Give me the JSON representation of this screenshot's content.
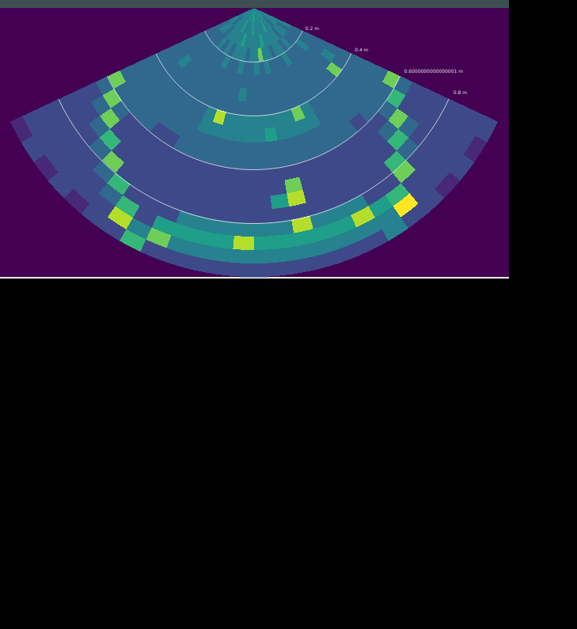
{
  "chart_data": {
    "type": "sonar",
    "color": "viridis",
    "zlim": [
      0,
      9
    ],
    "range_edges": [
      0,
      0.05,
      0.1,
      0.15,
      0.2,
      0.25,
      0.3,
      0.35,
      0.4,
      0.45,
      0.5,
      0.55,
      0.6,
      0.65,
      0.7,
      0.75,
      0.8,
      0.85,
      0.9,
      0.95,
      1.0
    ],
    "angle_edges": [
      -65,
      -60,
      -55,
      -50,
      -45,
      -40,
      -35,
      -30,
      -25,
      -20,
      -15,
      -10,
      -5,
      0,
      5,
      10,
      15,
      20,
      25,
      30,
      35,
      40,
      45,
      50,
      55,
      60,
      65
    ],
    "rings": [
      {
        "value": 0.2,
        "label": "0.2 m"
      },
      {
        "value": 0.4,
        "label": "0.4 m"
      },
      {
        "value": 0.6000000000000001,
        "label": "0.6000000000000001 m"
      },
      {
        "value": 0.8,
        "label": "0.8 m"
      }
    ],
    "intensity": [
      [
        4,
        4,
        4,
        4,
        5,
        4,
        4,
        4,
        5,
        4,
        4,
        5,
        5,
        5,
        4,
        4,
        5,
        4,
        4,
        4,
        5,
        4,
        4,
        4,
        4,
        4
      ],
      [
        4,
        4,
        3,
        4,
        4,
        4,
        4,
        5,
        4,
        4,
        4,
        4,
        5,
        4,
        4,
        4,
        4,
        4,
        5,
        4,
        4,
        4,
        3,
        4,
        4,
        4
      ],
      [
        3,
        4,
        4,
        3,
        4,
        4,
        4,
        4,
        4,
        5,
        4,
        4,
        4,
        4,
        4,
        5,
        4,
        4,
        4,
        4,
        4,
        3,
        4,
        4,
        3,
        4
      ],
      [
        3,
        3,
        3,
        3,
        4,
        3,
        4,
        3,
        4,
        4,
        4,
        3,
        4,
        4,
        7,
        4,
        4,
        3,
        4,
        4,
        3,
        4,
        3,
        3,
        3,
        3
      ],
      [
        3,
        3,
        3,
        3,
        3,
        3,
        3,
        4,
        3,
        3,
        4,
        3,
        3,
        4,
        3,
        4,
        3,
        3,
        3,
        4,
        3,
        3,
        3,
        4,
        3,
        3
      ],
      [
        3,
        3,
        3,
        3,
        3,
        3,
        3,
        3,
        3,
        3,
        3,
        3,
        3,
        3,
        3,
        3,
        3,
        3,
        3,
        3,
        3,
        3,
        3,
        3,
        3,
        3
      ],
      [
        3,
        3,
        4,
        3,
        3,
        3,
        3,
        3,
        3,
        3,
        3,
        4,
        3,
        3,
        3,
        3,
        3,
        3,
        3,
        3,
        3,
        3,
        3,
        3,
        4,
        3
      ],
      [
        3,
        3,
        3,
        3,
        3,
        3,
        3,
        3,
        3,
        3,
        3,
        3,
        3,
        3,
        3,
        3,
        3,
        3,
        3,
        3,
        3,
        3,
        3,
        7,
        3,
        3
      ],
      [
        3,
        3,
        3,
        3,
        3,
        3,
        3,
        3,
        4,
        8,
        4,
        4,
        4,
        4,
        4,
        4,
        4,
        7,
        4,
        3,
        3,
        3,
        3,
        3,
        3,
        3
      ],
      [
        3,
        3,
        3,
        3,
        3,
        3,
        3,
        3,
        4,
        4,
        4,
        4,
        4,
        4,
        5,
        4,
        4,
        4,
        4,
        3,
        3,
        3,
        3,
        3,
        3,
        3
      ],
      [
        3,
        3,
        3,
        3,
        3,
        3,
        3,
        3,
        3,
        3,
        3,
        3,
        3,
        3,
        3,
        3,
        3,
        3,
        3,
        3,
        3,
        3,
        3,
        3,
        3,
        3
      ],
      [
        7,
        3,
        3,
        3,
        3,
        2,
        2,
        3,
        3,
        3,
        3,
        3,
        3,
        3,
        3,
        3,
        3,
        3,
        3,
        3,
        3,
        2,
        3,
        3,
        3,
        7
      ],
      [
        3,
        7,
        3,
        2,
        2,
        2,
        2,
        2,
        2,
        2,
        2,
        2,
        2,
        2,
        2,
        2,
        2,
        2,
        2,
        2,
        2,
        2,
        2,
        3,
        6,
        3
      ],
      [
        2,
        3,
        7,
        2,
        2,
        2,
        2,
        2,
        2,
        2,
        2,
        2,
        2,
        2,
        2,
        7,
        2,
        2,
        2,
        2,
        2,
        2,
        3,
        7,
        2,
        2
      ],
      [
        2,
        2,
        3,
        6,
        2,
        2,
        2,
        2,
        2,
        2,
        2,
        2,
        2,
        2,
        5,
        8,
        2,
        2,
        2,
        2,
        2,
        2,
        6,
        3,
        2,
        2
      ],
      [
        2,
        2,
        2,
        3,
        7,
        2,
        2,
        2,
        2,
        2,
        2,
        2,
        2,
        2,
        2,
        2,
        2,
        2,
        2,
        2,
        2,
        6,
        3,
        2,
        2,
        2
      ],
      [
        2,
        2,
        2,
        2,
        3,
        6,
        2,
        2,
        2,
        4,
        4,
        4,
        4,
        4,
        4,
        8,
        4,
        4,
        4,
        2,
        2,
        7,
        2,
        2,
        2,
        2
      ],
      [
        2,
        2,
        2,
        2,
        2,
        3,
        6,
        2,
        5,
        5,
        5,
        5,
        8,
        5,
        5,
        5,
        5,
        5,
        8,
        5,
        6,
        2,
        2,
        2,
        2,
        2
      ],
      [
        2,
        2,
        2,
        2,
        2,
        2,
        8,
        4,
        7,
        4,
        4,
        4,
        4,
        4,
        4,
        4,
        4,
        4,
        4,
        4,
        9,
        2,
        2,
        2,
        2,
        2
      ],
      [
        1,
        2,
        1,
        2,
        1,
        2,
        2,
        6,
        2,
        2,
        2,
        2,
        2,
        2,
        2,
        2,
        2,
        2,
        2,
        4,
        2,
        2,
        1,
        2,
        1,
        2
      ]
    ]
  }
}
